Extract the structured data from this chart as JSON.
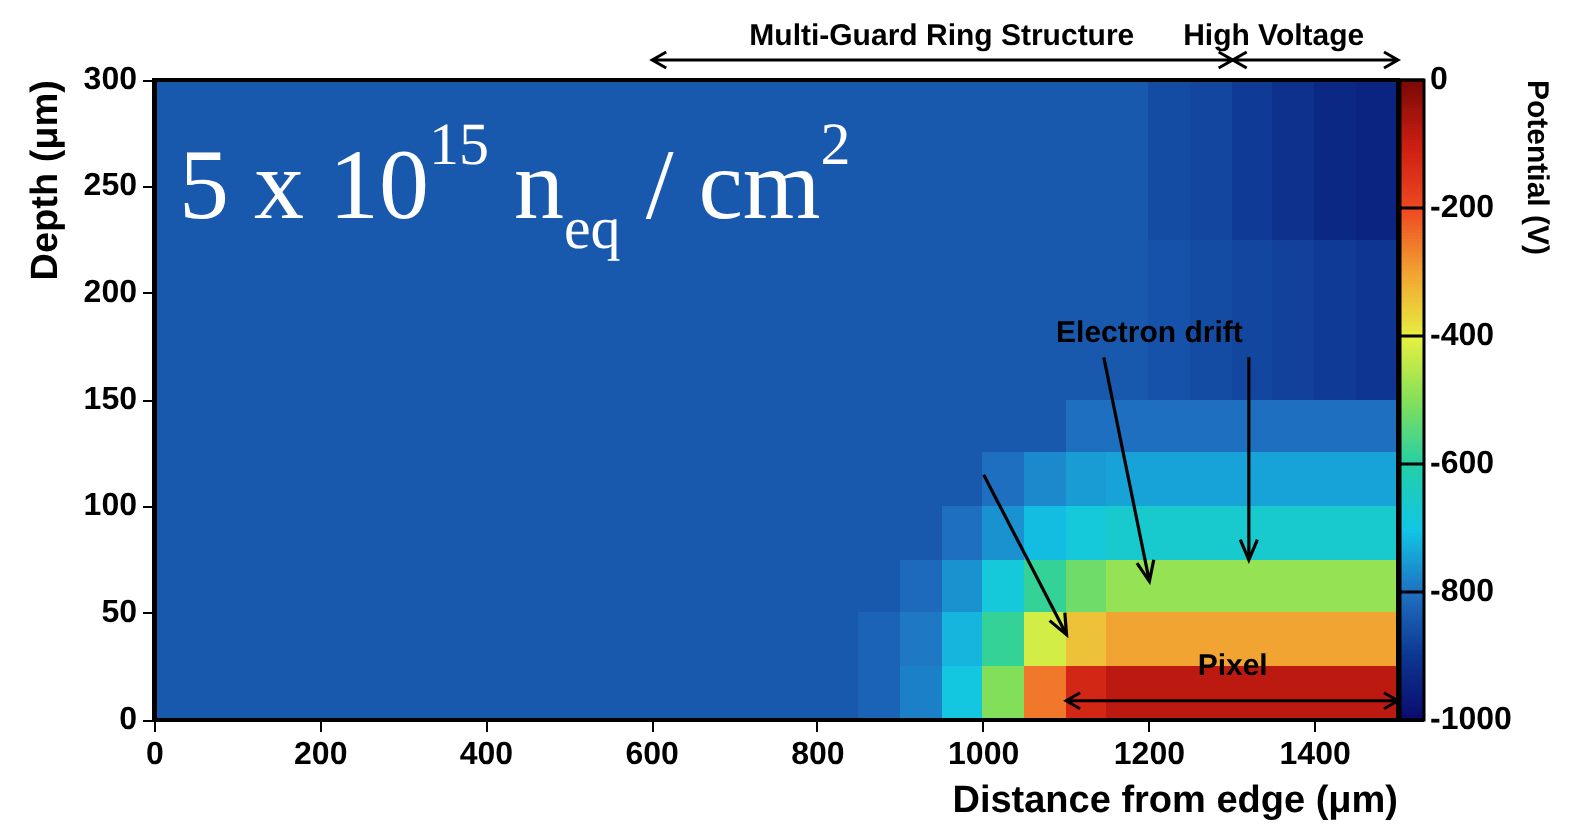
{
  "chart_data": {
    "type": "heatmap",
    "title": "5 x 10$^{15}$ n$_{eq}$ / cm$^{2}$",
    "xlabel": "Distance from edge (μm)",
    "ylabel": "Depth (μm)",
    "clabel": "Potential (V)",
    "x": [
      25,
      75,
      125,
      175,
      225,
      275,
      325,
      375,
      425,
      475,
      525,
      575,
      625,
      675,
      725,
      775,
      825,
      875,
      925,
      975,
      1025,
      1075,
      1125,
      1175,
      1225,
      1275,
      1325,
      1375,
      1425,
      1475
    ],
    "y": [
      287.5,
      262.5,
      237.5,
      212.5,
      187.5,
      162.5,
      137.5,
      112.5,
      87.5,
      62.5,
      37.5,
      12.5
    ],
    "xlim": [
      0,
      1500
    ],
    "xticks": [
      0,
      200,
      400,
      600,
      800,
      1000,
      1200,
      1400
    ],
    "ylim": [
      0,
      300
    ],
    "yticks": [
      0,
      50,
      100,
      150,
      200,
      250,
      300
    ],
    "clim": [
      -1000,
      0
    ],
    "cticks": [
      0,
      -200,
      -400,
      -600,
      -800,
      -1000
    ],
    "cells": [
      [
        -840,
        -840,
        -840,
        -840,
        -840,
        -840,
        -840,
        -840,
        -840,
        -840,
        -840,
        -840,
        -840,
        -840,
        -840,
        -840,
        -840,
        -840,
        -840,
        -840,
        -840,
        -840,
        -840,
        -840,
        -860,
        -870,
        -890,
        -910,
        -930,
        -940
      ],
      [
        -840,
        -840,
        -840,
        -840,
        -840,
        -840,
        -840,
        -840,
        -840,
        -840,
        -840,
        -840,
        -840,
        -840,
        -840,
        -840,
        -840,
        -840,
        -840,
        -840,
        -840,
        -840,
        -840,
        -840,
        -860,
        -870,
        -890,
        -910,
        -930,
        -940
      ],
      [
        -840,
        -840,
        -840,
        -840,
        -840,
        -840,
        -840,
        -840,
        -840,
        -840,
        -840,
        -840,
        -840,
        -840,
        -840,
        -840,
        -840,
        -840,
        -840,
        -840,
        -840,
        -840,
        -840,
        -840,
        -860,
        -870,
        -890,
        -910,
        -930,
        -940
      ],
      [
        -840,
        -840,
        -840,
        -840,
        -840,
        -840,
        -840,
        -840,
        -840,
        -840,
        -840,
        -840,
        -840,
        -840,
        -840,
        -840,
        -840,
        -840,
        -840,
        -840,
        -840,
        -840,
        -840,
        -840,
        -850,
        -860,
        -870,
        -880,
        -890,
        -900
      ],
      [
        -840,
        -840,
        -840,
        -840,
        -840,
        -840,
        -840,
        -840,
        -840,
        -840,
        -840,
        -840,
        -840,
        -840,
        -840,
        -840,
        -840,
        -840,
        -840,
        -840,
        -840,
        -840,
        -840,
        -840,
        -850,
        -860,
        -870,
        -880,
        -890,
        -900
      ],
      [
        -840,
        -840,
        -840,
        -840,
        -840,
        -840,
        -840,
        -840,
        -840,
        -840,
        -840,
        -840,
        -840,
        -840,
        -840,
        -840,
        -840,
        -840,
        -840,
        -840,
        -840,
        -840,
        -840,
        -840,
        -850,
        -860,
        -870,
        -880,
        -890,
        -900
      ],
      [
        -840,
        -840,
        -840,
        -840,
        -840,
        -840,
        -840,
        -840,
        -840,
        -840,
        -840,
        -840,
        -840,
        -840,
        -840,
        -840,
        -840,
        -840,
        -840,
        -840,
        -840,
        -840,
        -800,
        -800,
        -800,
        -800,
        -800,
        -800,
        -800,
        -800
      ],
      [
        -840,
        -840,
        -840,
        -840,
        -840,
        -840,
        -840,
        -840,
        -840,
        -840,
        -840,
        -840,
        -840,
        -840,
        -840,
        -840,
        -840,
        -840,
        -840,
        -840,
        -800,
        -770,
        -750,
        -740,
        -740,
        -740,
        -740,
        -740,
        -740,
        -740
      ],
      [
        -840,
        -840,
        -840,
        -840,
        -840,
        -840,
        -840,
        -840,
        -840,
        -840,
        -840,
        -840,
        -840,
        -840,
        -840,
        -840,
        -840,
        -840,
        -840,
        -800,
        -760,
        -710,
        -680,
        -660,
        -660,
        -660,
        -660,
        -660,
        -660,
        -660
      ],
      [
        -840,
        -840,
        -840,
        -840,
        -840,
        -840,
        -840,
        -840,
        -840,
        -840,
        -840,
        -840,
        -840,
        -840,
        -840,
        -840,
        -840,
        -840,
        -810,
        -760,
        -680,
        -580,
        -520,
        -480,
        -480,
        -480,
        -480,
        -480,
        -480,
        -480
      ],
      [
        -840,
        -840,
        -840,
        -840,
        -840,
        -840,
        -840,
        -840,
        -840,
        -840,
        -840,
        -840,
        -840,
        -840,
        -840,
        -840,
        -840,
        -820,
        -790,
        -720,
        -580,
        -420,
        -340,
        -300,
        -300,
        -300,
        -300,
        -300,
        -300,
        -300
      ],
      [
        -840,
        -840,
        -840,
        -840,
        -840,
        -840,
        -840,
        -840,
        -840,
        -840,
        -840,
        -840,
        -840,
        -840,
        -840,
        -840,
        -840,
        -820,
        -780,
        -690,
        -500,
        -250,
        -120,
        -80,
        -80,
        -80,
        -80,
        -80,
        -80,
        -80
      ]
    ],
    "annotations": [
      "Multi-Guard Ring Structure",
      "High Voltage",
      "Electron drift",
      "Pixel"
    ]
  }
}
